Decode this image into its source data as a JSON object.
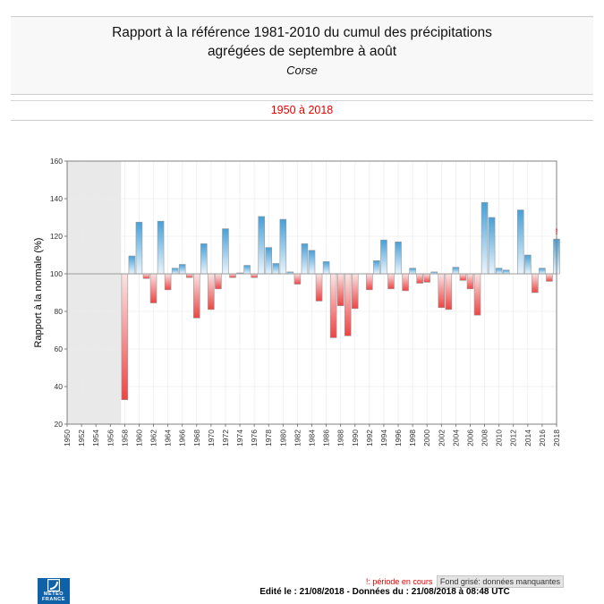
{
  "title": {
    "line1": "Rapport à la référence 1981-2010 du cumul des précipitations",
    "line2": "agrégées de septembre à août",
    "region": "Corse"
  },
  "period": "1950 à 2018",
  "legend": {
    "current": "!: période en cours",
    "missing": "Fond grisé: données manquantes"
  },
  "footer": {
    "edited": "Edité le : 21/08/2018 - Données du : 21/08/2018 à 08:48 UTC"
  },
  "logo": {
    "name": "meteo-france-logo",
    "line1": "METEO",
    "line2": "FRANCE"
  },
  "chart_data": {
    "type": "bar",
    "title": "Rapport à la référence 1981-2010 du cumul des précipitations agrégées de septembre à août - Corse",
    "ylabel": "Rapport à la normale (%)",
    "xlabel": "",
    "ylim": [
      20,
      160
    ],
    "yticks": [
      20,
      40,
      60,
      80,
      100,
      120,
      140,
      160
    ],
    "baseline": 100,
    "x_range": [
      1950,
      2018
    ],
    "xtick_step": 2,
    "missing_years_range": [
      1950,
      1957
    ],
    "grid": true,
    "years": [
      1958,
      1959,
      1960,
      1961,
      1962,
      1963,
      1964,
      1965,
      1966,
      1967,
      1968,
      1969,
      1970,
      1971,
      1972,
      1973,
      1974,
      1975,
      1976,
      1977,
      1978,
      1979,
      1980,
      1981,
      1982,
      1983,
      1984,
      1985,
      1986,
      1987,
      1988,
      1989,
      1990,
      1991,
      1992,
      1993,
      1994,
      1995,
      1996,
      1997,
      1998,
      1999,
      2000,
      2001,
      2002,
      2003,
      2004,
      2005,
      2006,
      2007,
      2008,
      2009,
      2010,
      2011,
      2012,
      2013,
      2014,
      2015,
      2016,
      2017,
      2018
    ],
    "values": [
      33,
      109.5,
      127.5,
      97.5,
      84.5,
      128,
      91.5,
      103,
      105,
      98,
      76.5,
      116,
      81,
      92,
      124,
      98,
      100.5,
      104.5,
      98,
      130.5,
      114,
      105.5,
      129,
      101,
      94.5,
      116,
      112.5,
      85.5,
      106.5,
      66,
      83,
      67,
      81.5,
      100,
      91.5,
      107,
      118,
      92,
      117,
      91,
      103,
      95,
      95.5,
      101,
      82,
      81,
      103.5,
      96.5,
      92,
      78,
      138,
      130,
      103,
      102,
      100,
      134,
      110,
      90,
      103,
      96,
      118.5
    ],
    "current_year_marker": {
      "year": 2018,
      "symbol": "!"
    },
    "colors": {
      "above_top": "#46a0d8",
      "above_bottom": "#eaf5fd",
      "below_top": "#fbe4e4",
      "below_bottom": "#ee4444",
      "bar_stroke": "#999999",
      "missing_bg": "#e9e9e9",
      "baseline_line": "#9a9a9a",
      "grid_line": "#ebebeb",
      "plot_border": "#808080",
      "tick_text": "#333333",
      "marker_red": "#e60000"
    }
  }
}
